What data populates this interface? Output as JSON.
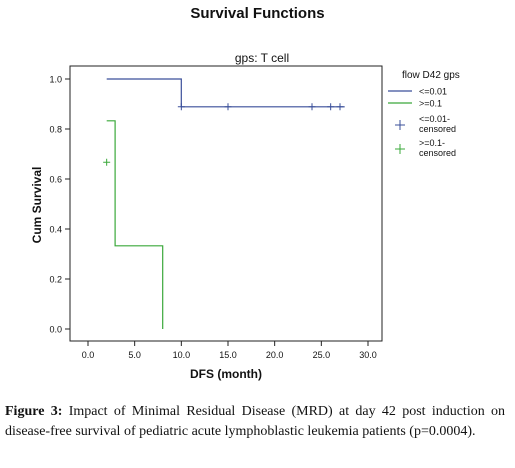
{
  "chart_data": {
    "type": "line",
    "step": true,
    "title": "Survival Functions",
    "subtitle": "gps: T cell",
    "xlabel": "DFS (month)",
    "ylabel": "Cum Survival",
    "xlim": [
      0,
      30
    ],
    "ylim": [
      0,
      1
    ],
    "x_ticks": [
      "0.0",
      "5.0",
      "10.0",
      "15.0",
      "20.0",
      "25.0",
      "30.0"
    ],
    "y_ticks": [
      "0.0",
      "0.2",
      "0.4",
      "0.6",
      "0.8",
      "1.0"
    ],
    "grid": false,
    "legend_title": "flow D42 gps",
    "legend_position": "right",
    "series": [
      {
        "name": "<=0.01",
        "color": "#3a4f9a",
        "x": [
          2,
          10,
          10,
          27.5
        ],
        "y": [
          1.0,
          1.0,
          0.889,
          0.889
        ],
        "censored_name": "<=0.01-censored",
        "censored_x": [
          10,
          15,
          24,
          26,
          27
        ],
        "censored_y": [
          0.889,
          0.889,
          0.889,
          0.889,
          0.889
        ]
      },
      {
        "name": ">=0.1",
        "color": "#3aa83a",
        "x": [
          2,
          2.9,
          2.9,
          8,
          8
        ],
        "y": [
          0.833,
          0.833,
          0.333,
          0.333,
          0.0
        ],
        "censored_name": ">=0.1-censored",
        "censored_x": [
          2
        ],
        "censored_y": [
          0.667
        ]
      }
    ],
    "legend_entries": [
      "<=0.01",
      ">=0.1",
      "<=0.01-censored",
      ">=0.1-censored"
    ]
  },
  "caption": {
    "label": "Figure 3:",
    "text": "Impact of Minimal Residual Disease (MRD) at day 42 post induction on disease-free survival of pediatric acute lymphoblastic leukemia patients (p=0.0004)."
  }
}
